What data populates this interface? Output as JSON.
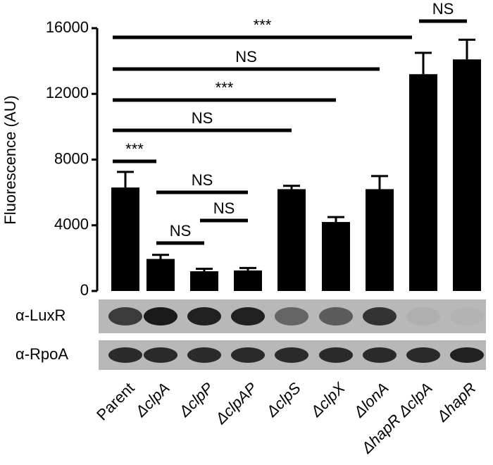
{
  "chart_data": {
    "type": "bar",
    "y_label": "Fluorescence (AU)",
    "categories": [
      "Parent",
      "ΔclpA",
      "ΔclpP",
      "ΔclpAP",
      "ΔclpS",
      "ΔclpX",
      "ΔlonA",
      "ΔhapR ΔclpA",
      "ΔhapR"
    ],
    "values": [
      6300,
      1950,
      1200,
      1250,
      6200,
      4200,
      6200,
      13200,
      14100
    ],
    "errors": [
      950,
      250,
      150,
      150,
      200,
      300,
      800,
      1300,
      1200
    ],
    "color": "#000000",
    "ylim": [
      0,
      16000
    ],
    "yticks": [
      0,
      4000,
      8000,
      12000,
      16000
    ],
    "annotations": [
      {
        "text": "***",
        "from": 0,
        "to": 7
      },
      {
        "text": "NS",
        "from": 7,
        "to": 8
      },
      {
        "text": "NS",
        "from": 0,
        "to": 6
      },
      {
        "text": "***",
        "from": 0,
        "to": 5
      },
      {
        "text": "NS",
        "from": 0,
        "to": 4
      },
      {
        "text": "***",
        "from": 0,
        "to": 1
      },
      {
        "text": "NS",
        "from": 1,
        "to": 3
      },
      {
        "text": "NS",
        "from": 2,
        "to": 3
      },
      {
        "text": "NS",
        "from": 1,
        "to": 2
      }
    ],
    "blots": [
      "α-LuxR",
      "α-RpoA"
    ]
  }
}
